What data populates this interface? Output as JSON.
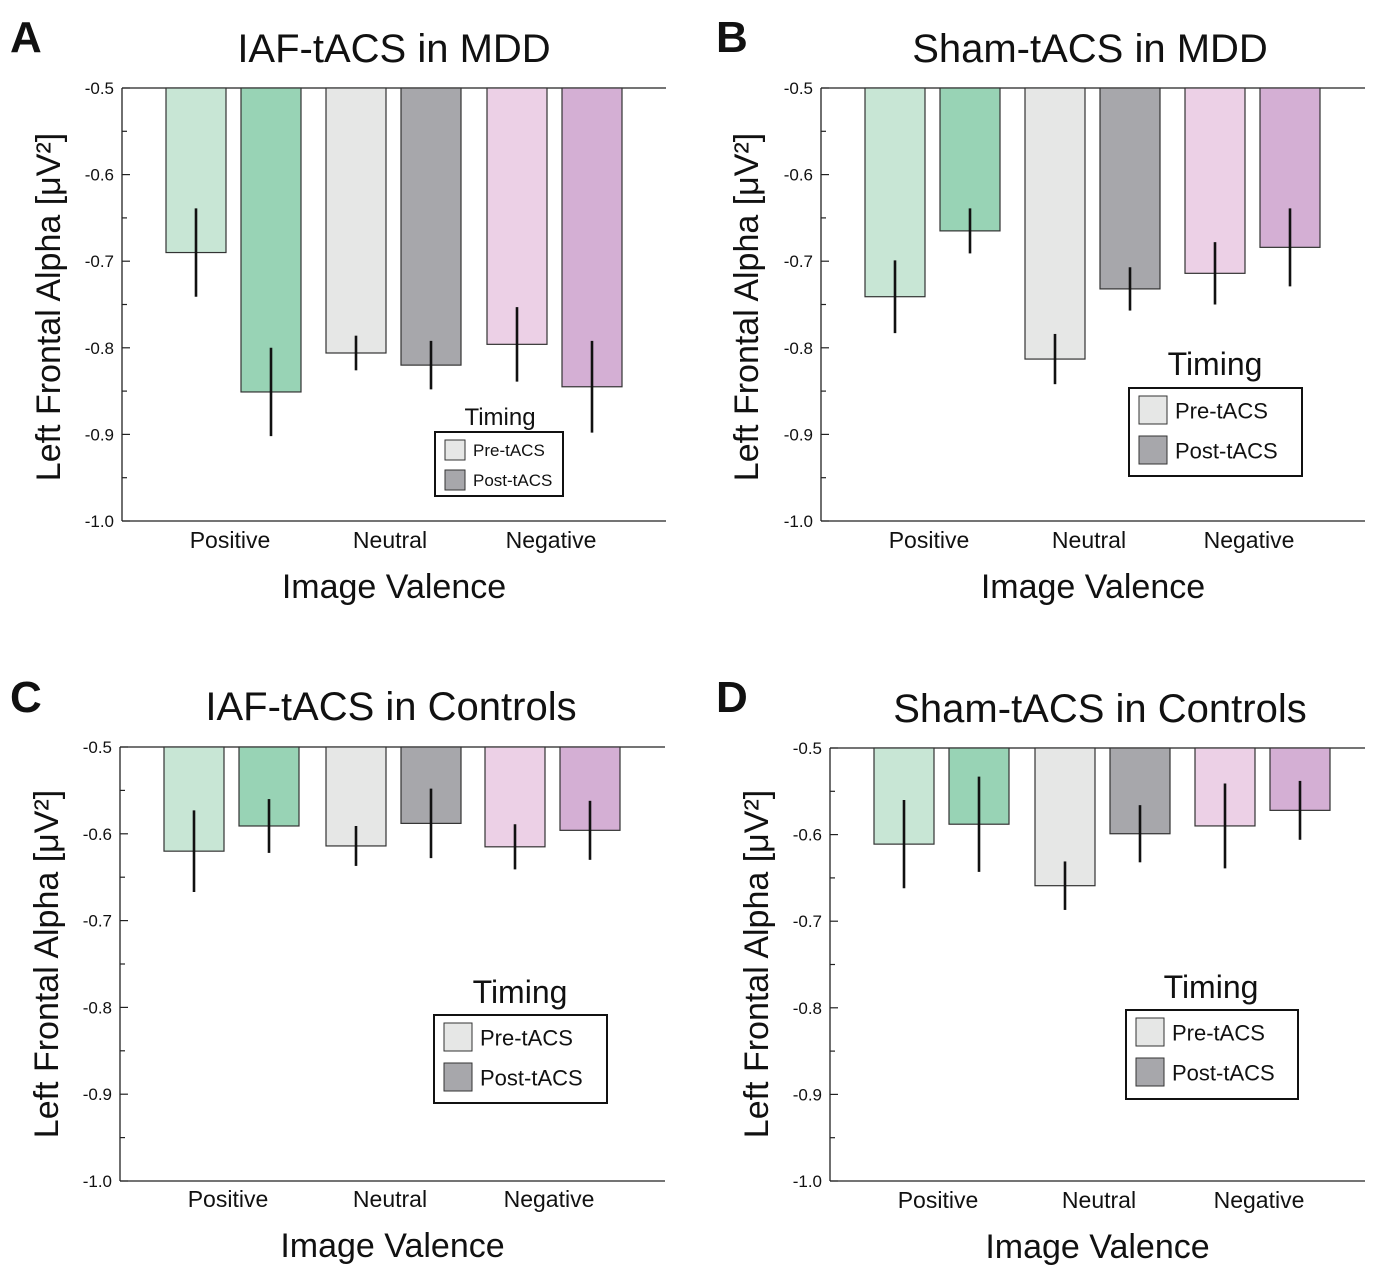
{
  "figure": {
    "legend_title": "Timing",
    "legend_items": [
      "Pre-tACS",
      "Post-tACS"
    ],
    "category_colors": {
      "Positive": {
        "pre": "#c8e6d5",
        "post": "#98d3b5"
      },
      "Neutral": {
        "pre": "#e6e7e6",
        "post": "#a7a7ab"
      },
      "Negative": {
        "pre": "#ecd0e6",
        "post": "#d4afd4"
      }
    },
    "legend_colors": {
      "pre": "#e6e7e6",
      "post": "#a7a7ab"
    }
  },
  "chart_data": [
    {
      "panel": "A",
      "type": "bar",
      "title": "IAF-tACS in MDD",
      "xlabel": "Image Valence",
      "ylabel": "Left Frontal Alpha [μV²]",
      "ylim": [
        -1.0,
        -0.5
      ],
      "yticks": [
        "-0.5",
        "-0.6",
        "-0.7",
        "-0.8",
        "-0.9",
        "-1.0"
      ],
      "categories": [
        "Positive",
        "Neutral",
        "Negative"
      ],
      "series": [
        {
          "name": "Pre-tACS",
          "values": [
            -0.69,
            -0.806,
            -0.796
          ],
          "error": [
            0.051,
            0.02,
            0.043
          ]
        },
        {
          "name": "Post-tACS",
          "values": [
            -0.851,
            -0.82,
            -0.845
          ],
          "error": [
            0.051,
            0.028,
            0.053
          ]
        }
      ],
      "legend_placement": "bottom-right"
    },
    {
      "panel": "B",
      "type": "bar",
      "title": "Sham-tACS in MDD",
      "xlabel": "Image Valence",
      "ylabel": "Left Frontal Alpha [μV²]",
      "ylim": [
        -1.0,
        -0.5
      ],
      "yticks": [
        "-0.5",
        "-0.6",
        "-0.7",
        "-0.8",
        "-0.9",
        "-1.0"
      ],
      "categories": [
        "Positive",
        "Neutral",
        "Negative"
      ],
      "series": [
        {
          "name": "Pre-tACS",
          "values": [
            -0.741,
            -0.813,
            -0.714
          ],
          "error": [
            0.042,
            0.029,
            0.036
          ]
        },
        {
          "name": "Post-tACS",
          "values": [
            -0.665,
            -0.732,
            -0.684
          ],
          "error": [
            0.026,
            0.025,
            0.045
          ]
        }
      ],
      "legend_placement": "right"
    },
    {
      "panel": "C",
      "type": "bar",
      "title": "IAF-tACS in Controls",
      "xlabel": "Image Valence",
      "ylabel": "Left Frontal Alpha [μV²]",
      "ylim": [
        -1.0,
        -0.5
      ],
      "yticks": [
        "-0.5",
        "-0.6",
        "-0.7",
        "-0.8",
        "-0.9",
        "-1.0"
      ],
      "categories": [
        "Positive",
        "Neutral",
        "Negative"
      ],
      "series": [
        {
          "name": "Pre-tACS",
          "values": [
            -0.62,
            -0.614,
            -0.615
          ],
          "error": [
            0.047,
            0.023,
            0.026
          ]
        },
        {
          "name": "Post-tACS",
          "values": [
            -0.591,
            -0.588,
            -0.596
          ],
          "error": [
            0.031,
            0.04,
            0.034
          ]
        }
      ],
      "legend_placement": "bottom-right"
    },
    {
      "panel": "D",
      "type": "bar",
      "title": "Sham-tACS in Controls",
      "xlabel": "Image Valence",
      "ylabel": "Left Frontal Alpha [μV²]",
      "ylim": [
        -1.0,
        -0.5
      ],
      "yticks": [
        "-0.5",
        "-0.6",
        "-0.7",
        "-0.8",
        "-0.9",
        "-1.0"
      ],
      "categories": [
        "Positive",
        "Neutral",
        "Negative"
      ],
      "series": [
        {
          "name": "Pre-tACS",
          "values": [
            -0.611,
            -0.659,
            -0.59
          ],
          "error": [
            0.051,
            0.028,
            0.049
          ]
        },
        {
          "name": "Post-tACS",
          "values": [
            -0.588,
            -0.599,
            -0.572
          ],
          "error": [
            0.055,
            0.033,
            0.034
          ]
        }
      ],
      "legend_placement": "bottom-right"
    }
  ]
}
